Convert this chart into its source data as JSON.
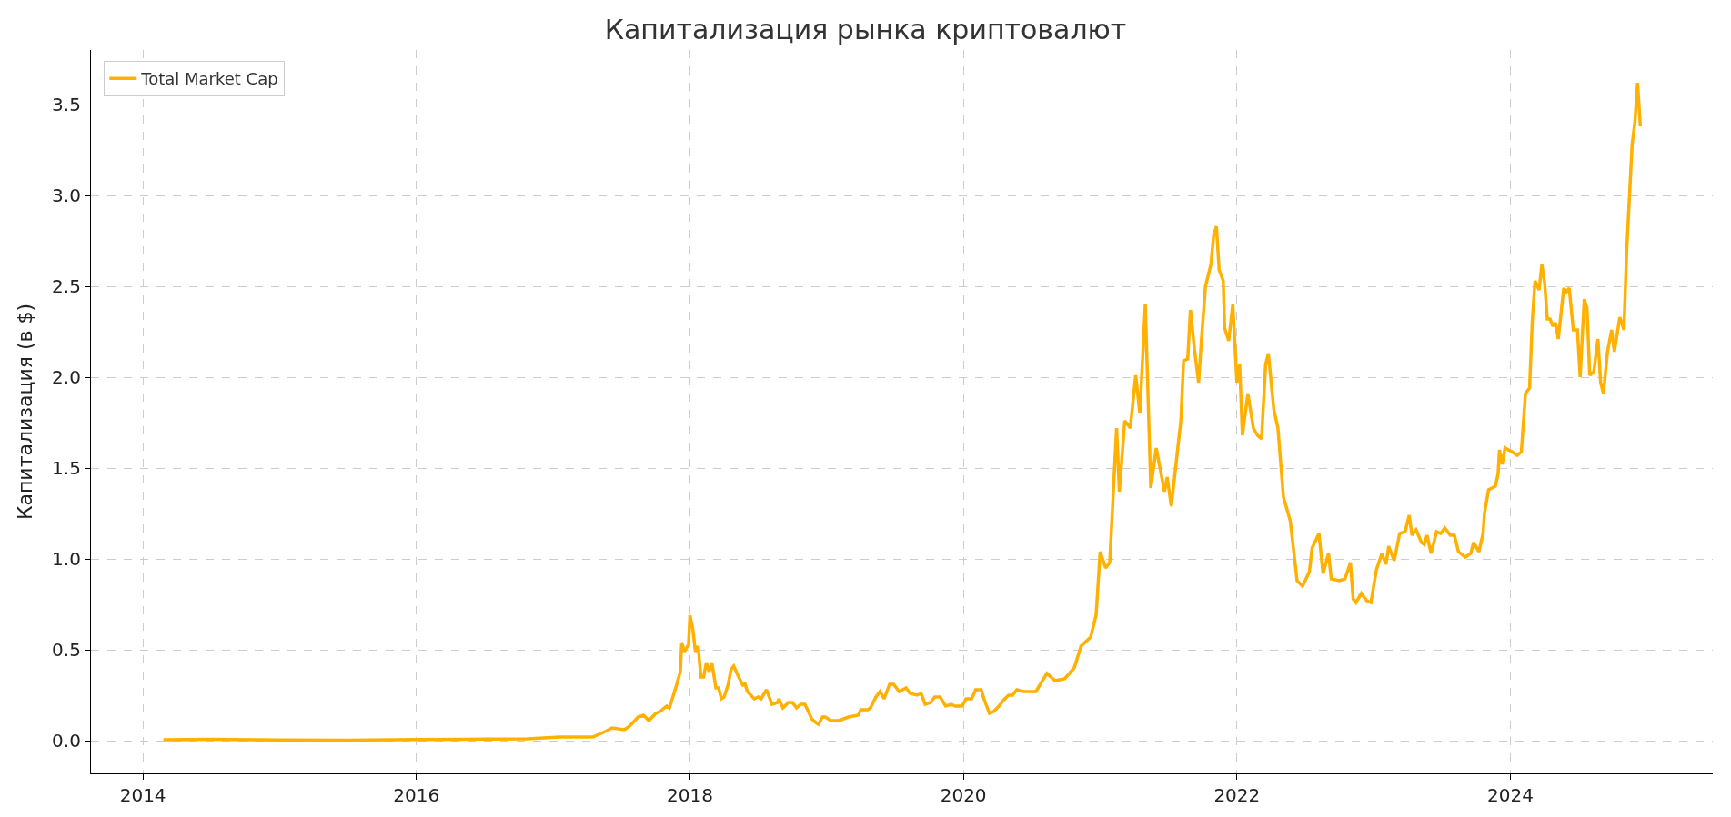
{
  "chart_data": {
    "type": "line",
    "title": "Капитализация рынка криптовалют",
    "ylabel": "Капитализация (в $)",
    "xlim": [
      2013.62,
      2025.48
    ],
    "xticks": [
      2014,
      2016,
      2018,
      2020,
      2022,
      2024
    ],
    "ylim": [
      -0.18,
      3.8
    ],
    "yticks": [
      {
        "value": 0,
        "label": "0.0"
      },
      0.5,
      {
        "value": 1,
        "label": "1.0"
      },
      1.5,
      {
        "value": 2,
        "label": "2.0"
      },
      2.5,
      {
        "value": 3,
        "label": "3.0"
      },
      3.5
    ],
    "grid": true,
    "legend": "top left",
    "line_style": "solid",
    "marker": "none",
    "series": [
      {
        "name": "Total Market Cap",
        "color": "#ffb000",
        "x": [
          2014.15,
          2014.5,
          2015.0,
          2015.5,
          2016.0,
          2016.5,
          2016.81,
          2017.05,
          2017.29,
          2017.38,
          2017.43,
          2017.52,
          2017.56,
          2017.62,
          2017.66,
          2017.7,
          2017.75,
          2017.78,
          2017.83,
          2017.85,
          2017.9,
          2017.93,
          2017.94,
          2017.96,
          2017.99,
          2018.0,
          2018.02,
          2018.04,
          2018.06,
          2018.08,
          2018.1,
          2018.12,
          2018.14,
          2018.16,
          2018.19,
          2018.21,
          2018.23,
          2018.25,
          2018.28,
          2018.3,
          2018.32,
          2018.35,
          2018.39,
          2018.4,
          2018.42,
          2018.47,
          2018.5,
          2018.52,
          2018.56,
          2018.6,
          2018.64,
          2018.65,
          2018.68,
          2018.72,
          2018.75,
          2018.78,
          2018.81,
          2018.84,
          2018.86,
          2018.89,
          2018.92,
          2018.94,
          2018.97,
          2018.99,
          2019.03,
          2019.09,
          2019.16,
          2019.23,
          2019.25,
          2019.3,
          2019.32,
          2019.36,
          2019.39,
          2019.42,
          2019.46,
          2019.49,
          2019.53,
          2019.58,
          2019.61,
          2019.66,
          2019.69,
          2019.72,
          2019.76,
          2019.79,
          2019.83,
          2019.87,
          2019.91,
          2019.94,
          2019.99,
          2020.02,
          2020.06,
          2020.09,
          2020.13,
          2020.15,
          2020.19,
          2020.22,
          2020.26,
          2020.29,
          2020.33,
          2020.36,
          2020.39,
          2020.44,
          2020.49,
          2020.53,
          2020.61,
          2020.67,
          2020.74,
          2020.81,
          2020.86,
          2020.93,
          2020.97,
          2021.0,
          2021.04,
          2021.07,
          2021.12,
          2021.14,
          2021.18,
          2021.22,
          2021.26,
          2021.29,
          2021.33,
          2021.37,
          2021.41,
          2021.47,
          2021.49,
          2021.52,
          2021.59,
          2021.61,
          2021.64,
          2021.66,
          2021.69,
          2021.72,
          2021.74,
          2021.77,
          2021.81,
          2021.83,
          2021.85,
          2021.87,
          2021.9,
          2021.91,
          2021.94,
          2021.97,
          2022.0,
          2022.02,
          2022.04,
          2022.08,
          2022.12,
          2022.15,
          2022.18,
          2022.21,
          2022.23,
          2022.27,
          2022.3,
          2022.34,
          2022.39,
          2022.44,
          2022.48,
          2022.53,
          2022.55,
          2022.6,
          2022.63,
          2022.67,
          2022.69,
          2022.75,
          2022.79,
          2022.83,
          2022.85,
          2022.87,
          2022.91,
          2022.95,
          2022.98,
          2023.02,
          2023.06,
          2023.09,
          2023.11,
          2023.15,
          2023.19,
          2023.23,
          2023.26,
          2023.28,
          2023.31,
          2023.35,
          2023.37,
          2023.39,
          2023.42,
          2023.46,
          2023.49,
          2023.52,
          2023.56,
          2023.59,
          2023.62,
          2023.67,
          2023.71,
          2023.73,
          2023.77,
          2023.8,
          2023.81,
          2023.84,
          2023.89,
          2023.91,
          2023.92,
          2023.94,
          2023.96,
          2024.01,
          2024.05,
          2024.08,
          2024.11,
          2024.14,
          2024.16,
          2024.18,
          2024.21,
          2024.23,
          2024.25,
          2024.27,
          2024.29,
          2024.31,
          2024.33,
          2024.35,
          2024.39,
          2024.41,
          2024.43,
          2024.46,
          2024.49,
          2024.51,
          2024.54,
          2024.56,
          2024.58,
          2024.61,
          2024.64,
          2024.66,
          2024.68,
          2024.71,
          2024.74,
          2024.76,
          2024.8,
          2024.83,
          2024.85,
          2024.89,
          2024.91,
          2024.93,
          2024.95
        ],
        "values": [
          0.005,
          0.008,
          0.004,
          0.003,
          0.006,
          0.009,
          0.01,
          0.02,
          0.02,
          0.05,
          0.07,
          0.06,
          0.08,
          0.13,
          0.14,
          0.11,
          0.15,
          0.16,
          0.19,
          0.18,
          0.3,
          0.38,
          0.54,
          0.49,
          0.53,
          0.69,
          0.62,
          0.49,
          0.52,
          0.35,
          0.35,
          0.43,
          0.38,
          0.43,
          0.29,
          0.29,
          0.23,
          0.24,
          0.31,
          0.39,
          0.41,
          0.36,
          0.3,
          0.32,
          0.27,
          0.23,
          0.24,
          0.23,
          0.28,
          0.2,
          0.21,
          0.23,
          0.18,
          0.21,
          0.21,
          0.18,
          0.2,
          0.2,
          0.17,
          0.12,
          0.1,
          0.09,
          0.13,
          0.13,
          0.11,
          0.11,
          0.13,
          0.14,
          0.17,
          0.17,
          0.18,
          0.24,
          0.27,
          0.23,
          0.31,
          0.31,
          0.27,
          0.29,
          0.26,
          0.25,
          0.26,
          0.2,
          0.21,
          0.24,
          0.24,
          0.19,
          0.2,
          0.19,
          0.19,
          0.23,
          0.23,
          0.28,
          0.28,
          0.23,
          0.15,
          0.16,
          0.19,
          0.22,
          0.25,
          0.25,
          0.28,
          0.27,
          0.27,
          0.27,
          0.37,
          0.33,
          0.34,
          0.4,
          0.52,
          0.57,
          0.69,
          1.04,
          0.95,
          0.98,
          1.72,
          1.37,
          1.76,
          1.72,
          2.01,
          1.8,
          2.4,
          1.39,
          1.61,
          1.37,
          1.45,
          1.29,
          1.76,
          2.09,
          2.1,
          2.37,
          2.15,
          1.97,
          2.2,
          2.5,
          2.62,
          2.78,
          2.83,
          2.59,
          2.53,
          2.27,
          2.2,
          2.4,
          1.97,
          2.07,
          1.68,
          1.91,
          1.72,
          1.68,
          1.66,
          2.07,
          2.13,
          1.82,
          1.72,
          1.34,
          1.21,
          0.88,
          0.85,
          0.93,
          1.06,
          1.14,
          0.92,
          1.03,
          0.89,
          0.88,
          0.89,
          0.98,
          0.78,
          0.76,
          0.81,
          0.77,
          0.76,
          0.94,
          1.03,
          0.97,
          1.07,
          0.99,
          1.14,
          1.15,
          1.24,
          1.13,
          1.16,
          1.09,
          1.08,
          1.13,
          1.03,
          1.15,
          1.14,
          1.17,
          1.13,
          1.13,
          1.04,
          1.01,
          1.03,
          1.09,
          1.04,
          1.14,
          1.25,
          1.38,
          1.4,
          1.47,
          1.6,
          1.52,
          1.61,
          1.59,
          1.57,
          1.59,
          1.91,
          1.94,
          2.31,
          2.53,
          2.48,
          2.62,
          2.52,
          2.32,
          2.32,
          2.28,
          2.3,
          2.21,
          2.49,
          2.47,
          2.49,
          2.26,
          2.26,
          2.0,
          2.43,
          2.38,
          2.01,
          2.03,
          2.21,
          1.97,
          1.91,
          2.14,
          2.26,
          2.14,
          2.33,
          2.26,
          2.69,
          3.28,
          3.4,
          3.62,
          3.38
        ]
      }
    ]
  }
}
